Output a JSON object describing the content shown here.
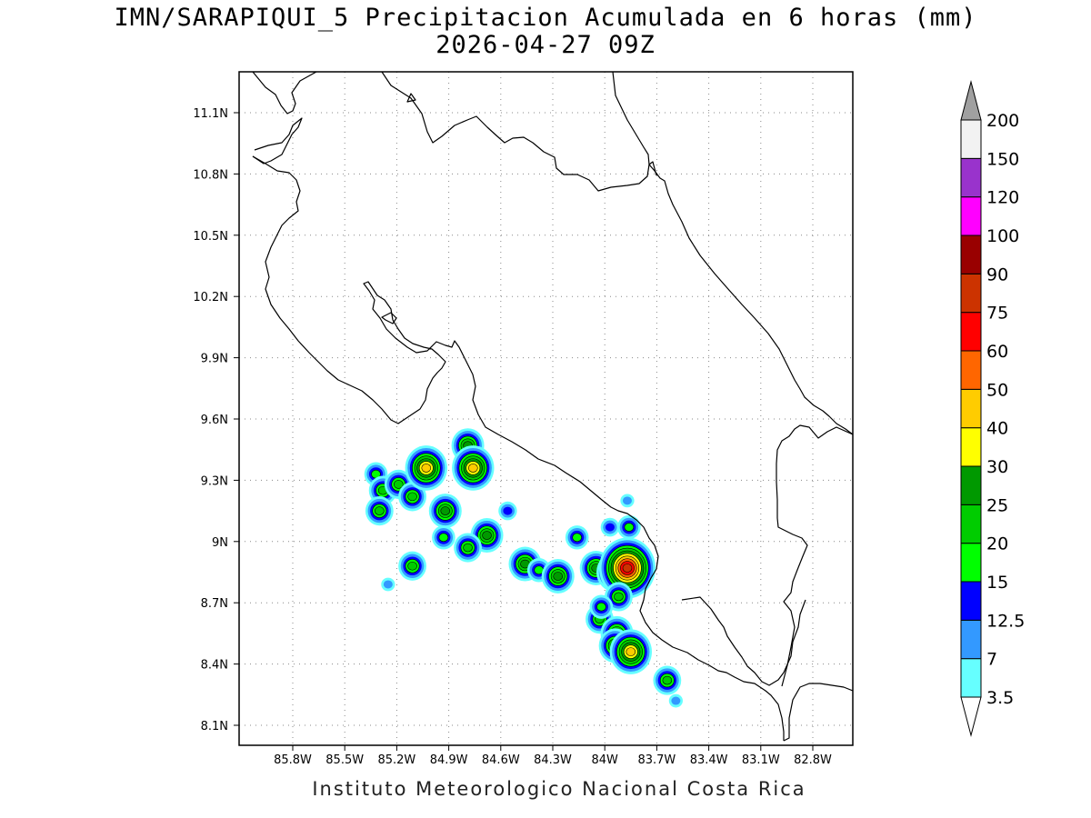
{
  "title": {
    "line1": "IMN/SARAPIQUI_5 Precipitacion Acumulada en 6 horas (mm)",
    "line2": "2026-04-27 09Z"
  },
  "credit": "Instituto Meteorologico Nacional Costa Rica",
  "axes": {
    "lon_ticks": [
      "85.8W",
      "85.5W",
      "85.2W",
      "84.9W",
      "84.6W",
      "84.3W",
      "84W",
      "83.7W",
      "83.4W",
      "83.1W",
      "82.8W"
    ],
    "lat_ticks": [
      "11.1N",
      "10.8N",
      "10.5N",
      "10.2N",
      "9.9N",
      "9.6N",
      "9.3N",
      "9N",
      "8.7N",
      "8.4N",
      "8.1N"
    ],
    "grid": "dotted"
  },
  "colorbar": {
    "labels": [
      "3.5",
      "7",
      "12.5",
      "15",
      "20",
      "25",
      "30",
      "40",
      "50",
      "60",
      "75",
      "90",
      "100",
      "120",
      "150",
      "200"
    ],
    "colors": [
      "#66ffff",
      "#3399ff",
      "#0000ff",
      "#00ff00",
      "#00cc00",
      "#009900",
      "#ffff00",
      "#ffcc00",
      "#ff6600",
      "#ff0000",
      "#cc3300",
      "#990000",
      "#ff00ff",
      "#9933cc",
      "#f2f2f2"
    ],
    "over_color": "#a0a0a0",
    "under_color": "#ffffff"
  },
  "precip_cells": [
    {
      "lon": -85.32,
      "lat": 9.33,
      "level": 3
    },
    {
      "lon": -85.28,
      "lat": 9.25,
      "level": 4
    },
    {
      "lon": -85.19,
      "lat": 9.28,
      "level": 4
    },
    {
      "lon": -85.11,
      "lat": 9.22,
      "level": 4
    },
    {
      "lon": -85.3,
      "lat": 9.15,
      "level": 4
    },
    {
      "lon": -85.03,
      "lat": 9.36,
      "level": 7
    },
    {
      "lon": -84.79,
      "lat": 9.47,
      "level": 5
    },
    {
      "lon": -84.76,
      "lat": 9.36,
      "level": 7
    },
    {
      "lon": -84.92,
      "lat": 9.15,
      "level": 5
    },
    {
      "lon": -84.93,
      "lat": 9.02,
      "level": 3
    },
    {
      "lon": -84.68,
      "lat": 9.03,
      "level": 5
    },
    {
      "lon": -84.79,
      "lat": 8.97,
      "level": 4
    },
    {
      "lon": -85.11,
      "lat": 8.88,
      "level": 4
    },
    {
      "lon": -85.25,
      "lat": 8.79,
      "level": 1
    },
    {
      "lon": -84.56,
      "lat": 9.15,
      "level": 2
    },
    {
      "lon": -84.46,
      "lat": 8.89,
      "level": 5
    },
    {
      "lon": -84.38,
      "lat": 8.86,
      "level": 3
    },
    {
      "lon": -84.27,
      "lat": 8.83,
      "level": 5
    },
    {
      "lon": -84.16,
      "lat": 9.02,
      "level": 3
    },
    {
      "lon": -83.97,
      "lat": 9.07,
      "level": 2
    },
    {
      "lon": -83.86,
      "lat": 9.07,
      "level": 3
    },
    {
      "lon": -84.05,
      "lat": 8.87,
      "level": 5
    },
    {
      "lon": -83.94,
      "lat": 8.85,
      "level": 6
    },
    {
      "lon": -83.87,
      "lat": 8.87,
      "level": 10
    },
    {
      "lon": -83.92,
      "lat": 8.73,
      "level": 4
    },
    {
      "lon": -84.03,
      "lat": 8.62,
      "level": 4
    },
    {
      "lon": -84.02,
      "lat": 8.68,
      "level": 3
    },
    {
      "lon": -83.93,
      "lat": 8.55,
      "level": 5
    },
    {
      "lon": -83.94,
      "lat": 8.49,
      "level": 5
    },
    {
      "lon": -83.85,
      "lat": 8.46,
      "level": 7
    },
    {
      "lon": -83.64,
      "lat": 8.32,
      "level": 4
    },
    {
      "lon": -83.59,
      "lat": 8.22,
      "level": 1
    },
    {
      "lon": -83.87,
      "lat": 9.2,
      "level": 1
    }
  ]
}
